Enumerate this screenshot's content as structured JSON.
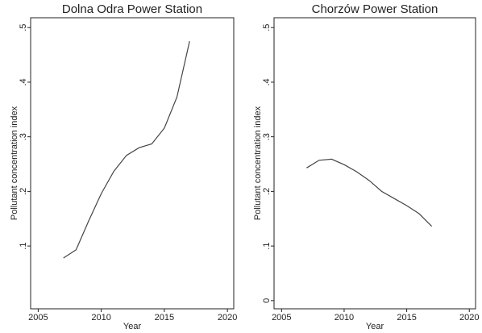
{
  "chart_data": [
    {
      "type": "line",
      "title": "Dolna Odra Power Station",
      "xlabel": "Year",
      "ylabel": "Pollutant concentration index",
      "x": [
        2007,
        2008,
        2009,
        2010,
        2011,
        2012,
        2013,
        2014,
        2015,
        2016,
        2017
      ],
      "series": [
        {
          "color": "#444444",
          "values": [
            0.078,
            0.093,
            0.146,
            0.196,
            0.237,
            0.266,
            0.28,
            0.287,
            0.316,
            0.373,
            0.475
          ]
        }
      ],
      "xlim": [
        2004.4,
        2020.5
      ],
      "xticks": [
        2005,
        2010,
        2015,
        2020
      ],
      "ylim": [
        -0.015,
        0.518
      ],
      "yticks": [
        {
          "value": 0.1,
          "label": ".1"
        },
        {
          "value": 0.2,
          "label": ".2"
        },
        {
          "value": 0.3,
          "label": ".3"
        },
        {
          "value": 0.4,
          "label": ".4"
        },
        {
          "value": 0.5,
          "label": ".5"
        }
      ]
    },
    {
      "type": "line",
      "title": "Chorzów Power Station",
      "xlabel": "Year",
      "ylabel": "Pollutant concentration index",
      "x": [
        2007,
        2008,
        2009,
        2010,
        2011,
        2012,
        2013,
        2014,
        2015,
        2016,
        2017
      ],
      "series": [
        {
          "color": "#444444",
          "values": [
            0.243,
            0.257,
            0.259,
            0.249,
            0.236,
            0.22,
            0.2,
            0.187,
            0.174,
            0.159,
            0.136
          ]
        }
      ],
      "xlim": [
        2004.4,
        2020.5
      ],
      "xticks": [
        2005,
        2010,
        2015,
        2020
      ],
      "ylim": [
        -0.015,
        0.518
      ],
      "yticks": [
        0,
        {
          "value": 0.1,
          "label": ".1"
        },
        {
          "value": 0.2,
          "label": ".2"
        },
        {
          "value": 0.3,
          "label": ".3"
        },
        {
          "value": 0.4,
          "label": ".4"
        },
        {
          "value": 0.5,
          "label": ".5"
        }
      ]
    }
  ]
}
